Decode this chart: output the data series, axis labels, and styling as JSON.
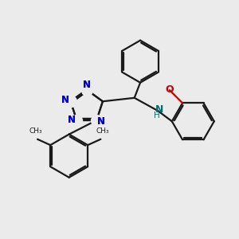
{
  "bg_color": "#ebebeb",
  "bond_color": "#1a1a1a",
  "N_color": "#0000cc",
  "O_color": "#cc0000",
  "NH_color": "#007070",
  "lw": 1.6,
  "xlim": [
    0,
    10
  ],
  "ylim": [
    0,
    10
  ]
}
